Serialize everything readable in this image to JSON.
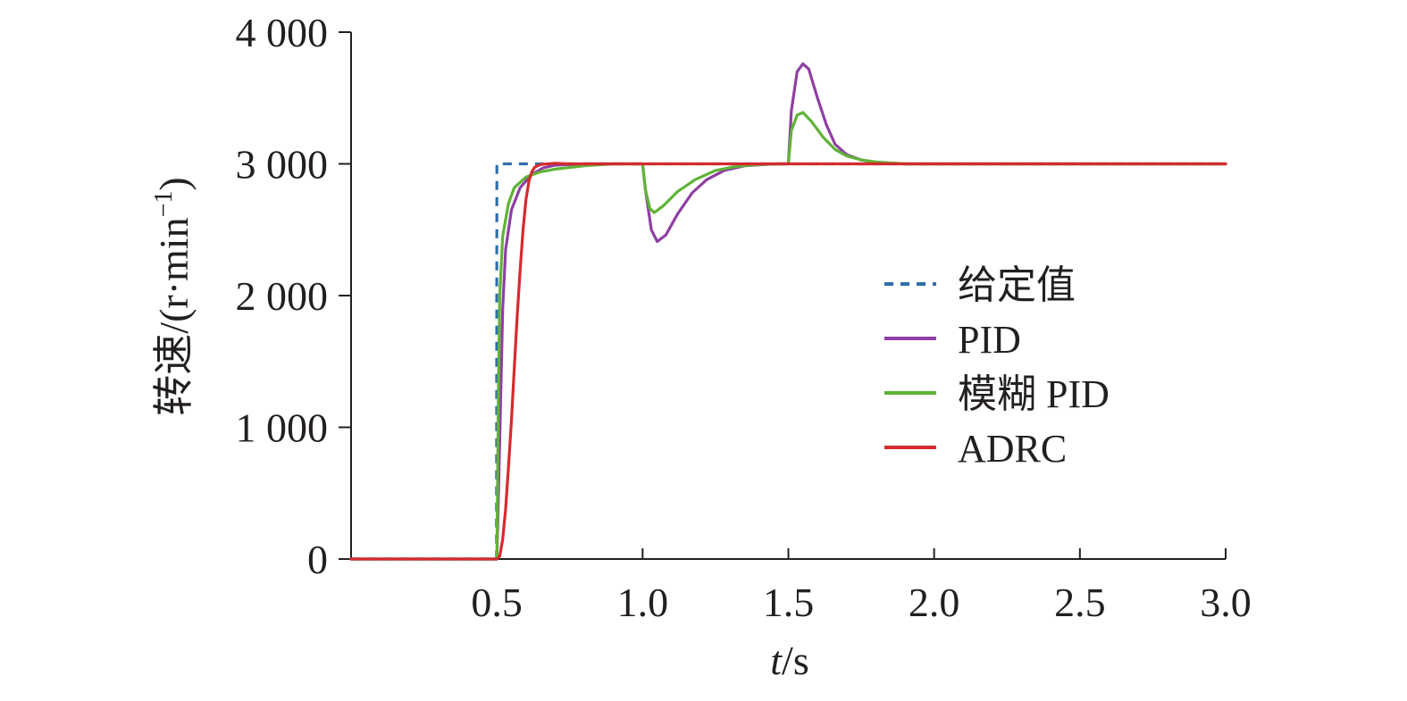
{
  "chart_data": {
    "type": "line",
    "title": "",
    "xlabel": {
      "italic": "t",
      "rest": "/s"
    },
    "ylabel": {
      "main": "转速/(r·min",
      "sup": "−1",
      "close": ")"
    },
    "xlim": [
      0,
      3.0
    ],
    "ylim": [
      0,
      4000
    ],
    "x_ticks": [
      0.5,
      1.0,
      1.5,
      2.0,
      2.5,
      3.0
    ],
    "x_tick_labels": [
      "0.5",
      "1.0",
      "1.5",
      "2.0",
      "2.5",
      "3.0"
    ],
    "y_ticks": [
      0,
      1000,
      2000,
      3000,
      4000
    ],
    "y_tick_labels": [
      "0",
      "1 000",
      "2 000",
      "3 000",
      "4 000"
    ],
    "grid": false,
    "legend_position": "right-middle",
    "series": [
      {
        "name": "给定值",
        "color": "#2e6fad",
        "dash": "dashed",
        "points": [
          [
            0,
            0
          ],
          [
            0.499,
            0
          ],
          [
            0.5,
            3000
          ],
          [
            3.0,
            3000
          ]
        ]
      },
      {
        "name": "PID",
        "color": "#8e3fa3",
        "dash": "solid",
        "points": [
          [
            0,
            0
          ],
          [
            0.5,
            0
          ],
          [
            0.51,
            900
          ],
          [
            0.52,
            1900
          ],
          [
            0.53,
            2350
          ],
          [
            0.55,
            2650
          ],
          [
            0.58,
            2820
          ],
          [
            0.62,
            2920
          ],
          [
            0.66,
            2970
          ],
          [
            0.7,
            2990
          ],
          [
            0.8,
            3000
          ],
          [
            0.99,
            3000
          ],
          [
            1.0,
            3000
          ],
          [
            1.01,
            2800
          ],
          [
            1.03,
            2500
          ],
          [
            1.05,
            2410
          ],
          [
            1.08,
            2460
          ],
          [
            1.12,
            2620
          ],
          [
            1.17,
            2780
          ],
          [
            1.22,
            2880
          ],
          [
            1.28,
            2950
          ],
          [
            1.35,
            2985
          ],
          [
            1.45,
            3000
          ],
          [
            1.49,
            3000
          ],
          [
            1.5,
            3000
          ],
          [
            1.51,
            3400
          ],
          [
            1.53,
            3700
          ],
          [
            1.55,
            3760
          ],
          [
            1.57,
            3720
          ],
          [
            1.6,
            3500
          ],
          [
            1.63,
            3300
          ],
          [
            1.66,
            3150
          ],
          [
            1.7,
            3070
          ],
          [
            1.75,
            3030
          ],
          [
            1.8,
            3010
          ],
          [
            1.9,
            3000
          ],
          [
            3.0,
            3000
          ]
        ]
      },
      {
        "name": "模糊 PID",
        "color": "#5fb336",
        "dash": "solid",
        "points": [
          [
            0,
            0
          ],
          [
            0.5,
            0
          ],
          [
            0.505,
            1200
          ],
          [
            0.51,
            2000
          ],
          [
            0.52,
            2450
          ],
          [
            0.54,
            2700
          ],
          [
            0.56,
            2820
          ],
          [
            0.6,
            2900
          ],
          [
            0.65,
            2940
          ],
          [
            0.7,
            2960
          ],
          [
            0.8,
            2985
          ],
          [
            0.9,
            3000
          ],
          [
            0.99,
            3000
          ],
          [
            1.0,
            3000
          ],
          [
            1.01,
            2800
          ],
          [
            1.025,
            2660
          ],
          [
            1.04,
            2630
          ],
          [
            1.07,
            2680
          ],
          [
            1.12,
            2790
          ],
          [
            1.18,
            2880
          ],
          [
            1.25,
            2950
          ],
          [
            1.32,
            2980
          ],
          [
            1.4,
            2995
          ],
          [
            1.49,
            3000
          ],
          [
            1.5,
            3000
          ],
          [
            1.51,
            3250
          ],
          [
            1.53,
            3370
          ],
          [
            1.55,
            3390
          ],
          [
            1.58,
            3320
          ],
          [
            1.62,
            3200
          ],
          [
            1.66,
            3110
          ],
          [
            1.7,
            3060
          ],
          [
            1.75,
            3030
          ],
          [
            1.8,
            3015
          ],
          [
            1.9,
            3000
          ],
          [
            3.0,
            3000
          ]
        ]
      },
      {
        "name": "ADRC",
        "color": "#d62a2e",
        "dash": "solid",
        "points": [
          [
            0,
            0
          ],
          [
            0.5,
            0
          ],
          [
            0.51,
            20
          ],
          [
            0.52,
            150
          ],
          [
            0.53,
            380
          ],
          [
            0.54,
            700
          ],
          [
            0.55,
            1050
          ],
          [
            0.56,
            1450
          ],
          [
            0.57,
            1850
          ],
          [
            0.58,
            2200
          ],
          [
            0.59,
            2500
          ],
          [
            0.6,
            2730
          ],
          [
            0.61,
            2870
          ],
          [
            0.62,
            2940
          ],
          [
            0.63,
            2975
          ],
          [
            0.65,
            2995
          ],
          [
            0.7,
            3005
          ],
          [
            0.75,
            3000
          ],
          [
            3.0,
            3000
          ]
        ]
      }
    ]
  }
}
